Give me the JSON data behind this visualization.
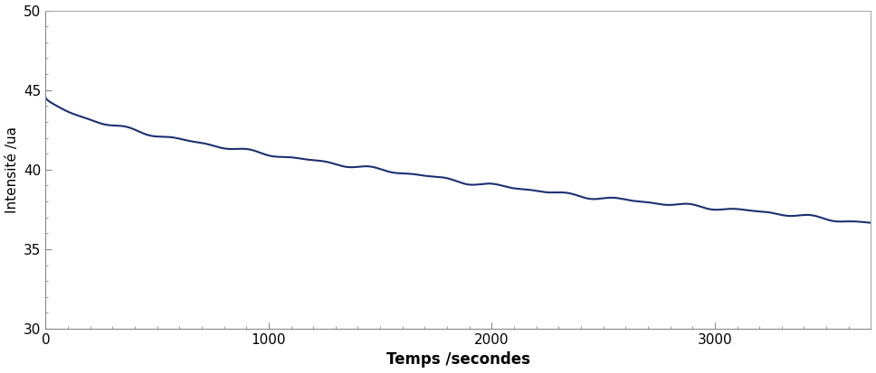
{
  "title": "",
  "xlabel": "Temps /secondes",
  "ylabel": "Intensité /ua",
  "xlim": [
    0,
    3700
  ],
  "ylim": [
    30,
    50
  ],
  "xticks": [
    0,
    1000,
    2000,
    3000
  ],
  "yticks": [
    30,
    35,
    40,
    45,
    50
  ],
  "line_color": "#1a3070",
  "line_width": 1.5,
  "background_color": "#ffffff",
  "x_start": 0,
  "x_end": 3700,
  "n_points": 3700,
  "y_start": 44.5,
  "y_end": 36.2,
  "noise_amplitude": 0.12,
  "xlabel_fontsize": 12,
  "ylabel_fontsize": 11,
  "tick_fontsize": 11
}
